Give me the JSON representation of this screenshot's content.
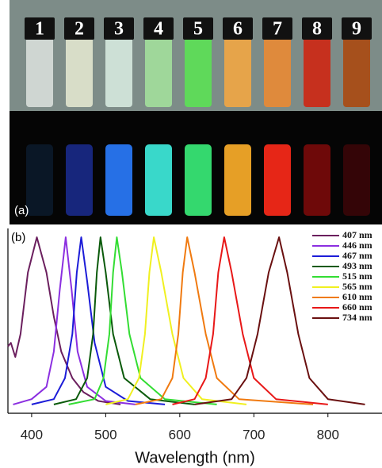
{
  "photo": {
    "panel_label": "(a)",
    "vial_labels": [
      "1",
      "2",
      "3",
      "4",
      "5",
      "6",
      "7",
      "8",
      "9"
    ]
  },
  "chart_data": {
    "type": "line",
    "panel_label": "(b)",
    "x_label": "Wavelength (nm)",
    "xlim": [
      368,
      873
    ],
    "xticks": [
      400,
      500,
      600,
      700,
      800
    ],
    "ylim": [
      0,
      1.05
    ],
    "series": [
      {
        "name": "407 nm",
        "color": "#6b1f5e",
        "x": [
          368,
          372,
          378,
          385,
          395,
          407,
          420,
          430,
          440,
          455,
          470,
          490,
          520
        ],
        "values": [
          0.38,
          0.4,
          0.32,
          0.45,
          0.8,
          1.0,
          0.8,
          0.55,
          0.35,
          0.2,
          0.12,
          0.07,
          0.05
        ]
      },
      {
        "name": "446 nm",
        "color": "#8b2fe0",
        "x": [
          375,
          400,
          420,
          430,
          438,
          446,
          454,
          462,
          475,
          500,
          540
        ],
        "values": [
          0.05,
          0.08,
          0.15,
          0.35,
          0.7,
          1.0,
          0.7,
          0.35,
          0.15,
          0.07,
          0.05
        ]
      },
      {
        "name": "467 nm",
        "color": "#1c1cd8",
        "x": [
          400,
          430,
          445,
          455,
          461,
          467,
          475,
          485,
          500,
          530,
          580
        ],
        "values": [
          0.05,
          0.08,
          0.2,
          0.45,
          0.8,
          1.0,
          0.75,
          0.4,
          0.15,
          0.07,
          0.05
        ]
      },
      {
        "name": "493 nm",
        "color": "#0a5a0a",
        "x": [
          430,
          460,
          475,
          483,
          488,
          493,
          500,
          510,
          525,
          560,
          620
        ],
        "values": [
          0.05,
          0.08,
          0.2,
          0.45,
          0.8,
          1.0,
          0.8,
          0.45,
          0.2,
          0.08,
          0.05
        ]
      },
      {
        "name": "515 nm",
        "color": "#33dd33",
        "x": [
          450,
          485,
          497,
          505,
          510,
          515,
          522,
          532,
          547,
          580,
          650
        ],
        "values": [
          0.05,
          0.08,
          0.2,
          0.45,
          0.8,
          1.0,
          0.8,
          0.45,
          0.2,
          0.08,
          0.05
        ]
      },
      {
        "name": "565 nm",
        "color": "#f0f020",
        "x": [
          500,
          530,
          545,
          553,
          559,
          565,
          575,
          590,
          605,
          630,
          690
        ],
        "values": [
          0.05,
          0.08,
          0.2,
          0.45,
          0.8,
          1.0,
          0.8,
          0.45,
          0.2,
          0.08,
          0.05
        ]
      },
      {
        "name": "610 nm",
        "color": "#f07a10",
        "x": [
          540,
          575,
          590,
          598,
          604,
          610,
          620,
          635,
          650,
          680,
          780
        ],
        "values": [
          0.05,
          0.08,
          0.2,
          0.45,
          0.8,
          1.0,
          0.8,
          0.45,
          0.2,
          0.08,
          0.05
        ]
      },
      {
        "name": "660 nm",
        "color": "#e81818",
        "x": [
          590,
          620,
          635,
          645,
          652,
          660,
          670,
          685,
          700,
          730,
          800
        ],
        "values": [
          0.05,
          0.08,
          0.2,
          0.45,
          0.8,
          1.0,
          0.8,
          0.45,
          0.2,
          0.08,
          0.05
        ]
      },
      {
        "name": "734 nm",
        "color": "#6a1010",
        "x": [
          620,
          670,
          690,
          705,
          720,
          734,
          745,
          760,
          775,
          800,
          850
        ],
        "values": [
          0.05,
          0.08,
          0.2,
          0.45,
          0.8,
          1.0,
          0.8,
          0.45,
          0.2,
          0.08,
          0.05
        ]
      }
    ]
  }
}
